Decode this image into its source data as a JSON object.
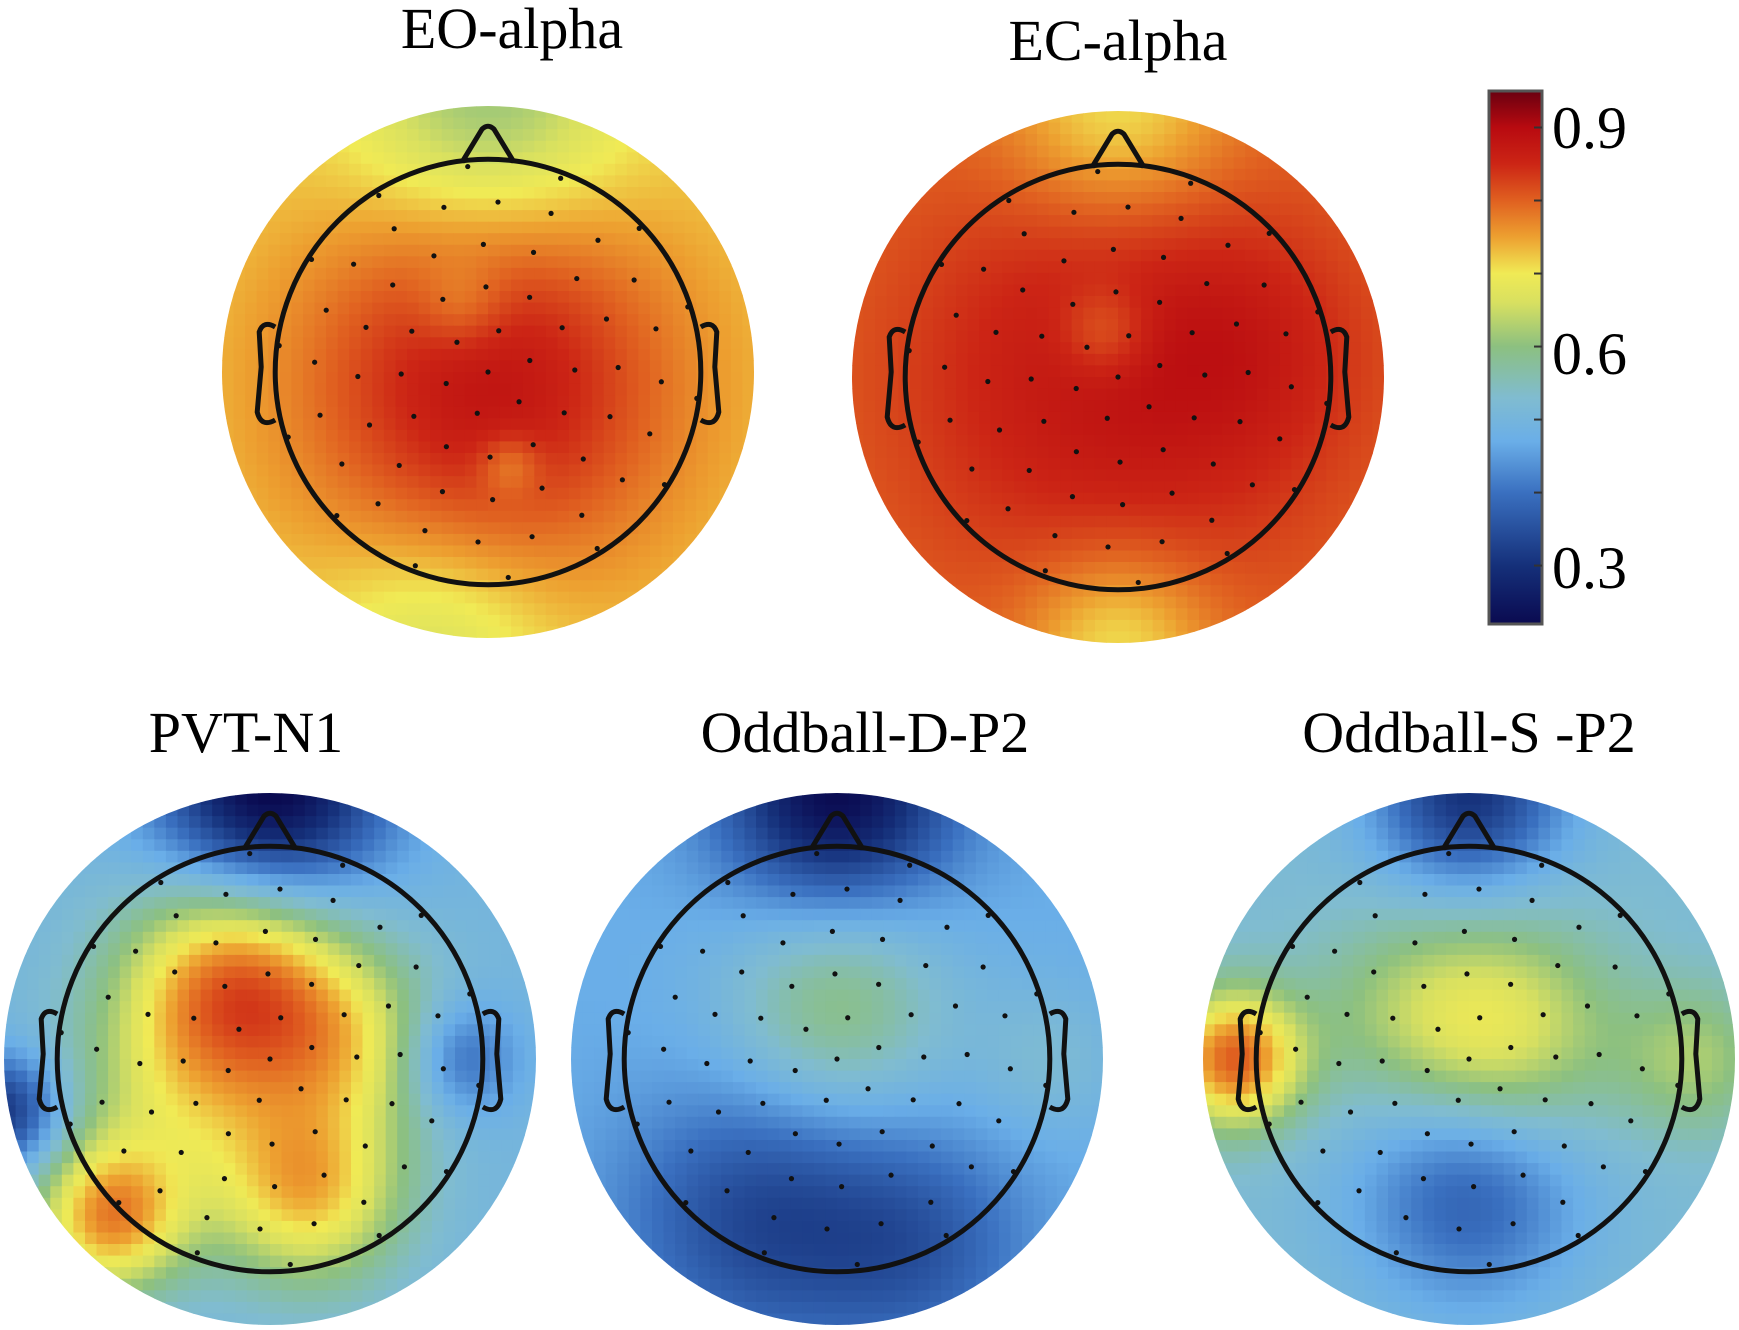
{
  "chart_data": {
    "type": "heatmap",
    "subtype": "scalp-topography",
    "colorbar": {
      "range": [
        0.22,
        0.95
      ],
      "ticks": [
        0.3,
        0.4,
        0.5,
        0.6,
        0.7,
        0.8,
        0.9
      ],
      "tick_labels": [
        "0.9",
        "0.6",
        "0.3"
      ],
      "labeled_values": [
        0.9,
        0.6,
        0.3
      ],
      "stops": [
        [
          0.22,
          "#0a0a50"
        ],
        [
          0.3,
          "#15307a"
        ],
        [
          0.4,
          "#3a70c0"
        ],
        [
          0.47,
          "#6aaee8"
        ],
        [
          0.53,
          "#80bcd0"
        ],
        [
          0.6,
          "#8cc080"
        ],
        [
          0.66,
          "#d8e060"
        ],
        [
          0.7,
          "#f0ea55"
        ],
        [
          0.75,
          "#eda030"
        ],
        [
          0.8,
          "#e06020"
        ],
        [
          0.85,
          "#cc2515"
        ],
        [
          0.9,
          "#b80a10"
        ],
        [
          0.95,
          "#6a0010"
        ]
      ]
    },
    "maps": [
      {
        "title": "EO-alpha",
        "base": 0.72,
        "blobs": [
          [
            0,
            0.05,
            0.16,
            0.5
          ],
          [
            0,
            -1,
            -0.12,
            0.35
          ],
          [
            -0.2,
            1,
            -0.07,
            0.3
          ],
          [
            0.08,
            0.35,
            -0.06,
            0.08
          ],
          [
            -0.1,
            -0.25,
            -0.05,
            0.12
          ]
        ]
      },
      {
        "title": "EC-alpha",
        "base": 0.79,
        "blobs": [
          [
            0,
            0,
            0.09,
            0.6
          ],
          [
            0,
            -1,
            -0.1,
            0.3
          ],
          [
            0,
            1,
            -0.1,
            0.25
          ],
          [
            -0.05,
            -0.17,
            -0.06,
            0.12
          ],
          [
            0.5,
            -0.1,
            0.03,
            0.3
          ]
        ]
      },
      {
        "title": "PVT-N1",
        "base": 0.5,
        "blobs": [
          [
            0,
            -1,
            -0.3,
            0.3
          ],
          [
            -0.12,
            -0.3,
            0.28,
            0.3
          ],
          [
            -0.6,
            0.6,
            0.25,
            0.2
          ],
          [
            0.15,
            0.5,
            0.22,
            0.25
          ],
          [
            0.3,
            -0.05,
            0.14,
            0.25
          ],
          [
            -1,
            0.2,
            -0.2,
            0.15
          ],
          [
            0.72,
            0.0,
            -0.12,
            0.15
          ],
          [
            -0.35,
            0.15,
            0.12,
            0.3
          ]
        ]
      },
      {
        "title": "Oddball-D-P2",
        "base": 0.47,
        "blobs": [
          [
            0,
            -1,
            -0.25,
            0.3
          ],
          [
            0,
            -0.2,
            0.13,
            0.3
          ],
          [
            -0.3,
            0.6,
            -0.13,
            0.35
          ],
          [
            0.3,
            0.7,
            -0.1,
            0.3
          ],
          [
            0.8,
            0,
            0.05,
            0.2
          ]
        ]
      },
      {
        "title": "Oddball-S -P2",
        "base": 0.52,
        "blobs": [
          [
            0,
            -1,
            -0.22,
            0.25
          ],
          [
            0.1,
            -0.1,
            0.17,
            0.3
          ],
          [
            -0.88,
            0,
            0.28,
            0.18
          ],
          [
            0.85,
            0,
            0.1,
            0.2
          ],
          [
            0,
            0.5,
            -0.15,
            0.3
          ],
          [
            -0.3,
            -0.2,
            0.05,
            0.25
          ]
        ]
      }
    ]
  }
}
